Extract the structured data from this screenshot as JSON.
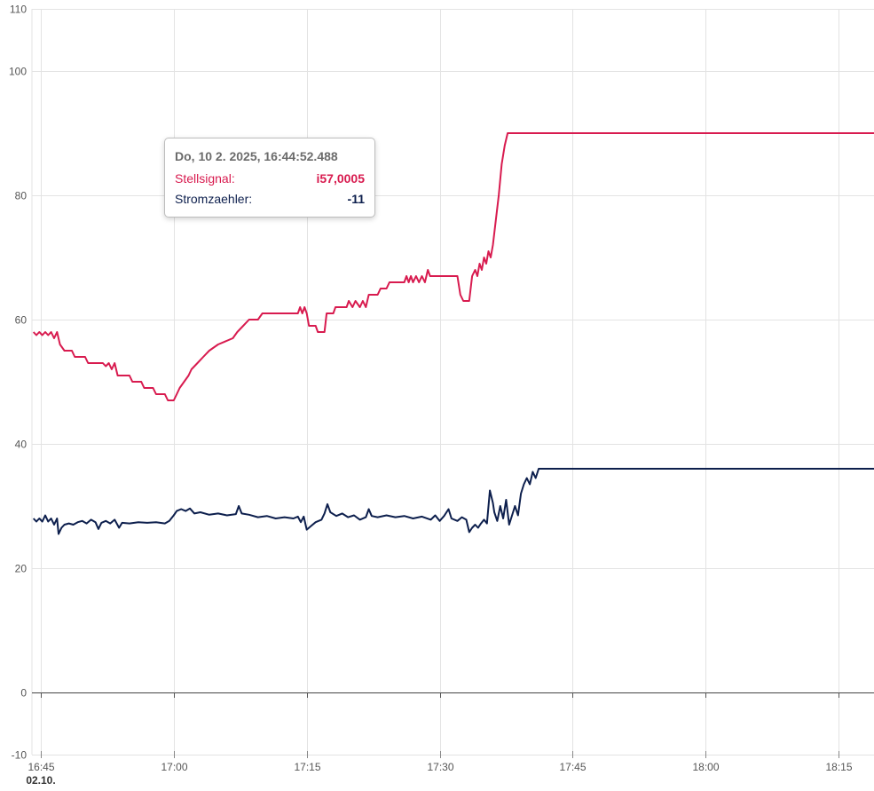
{
  "chart_data": {
    "type": "line",
    "title": "",
    "xlabel": "",
    "ylabel": "",
    "ylim": [
      -10,
      110
    ],
    "y_ticks": [
      -10,
      0,
      20,
      40,
      60,
      80,
      100,
      110
    ],
    "x_range": [
      "16:44",
      "18:19"
    ],
    "x_ticks": [
      "16:45",
      "17:00",
      "17:15",
      "17:30",
      "17:45",
      "18:00",
      "18:15"
    ],
    "x_date_label": "02.10.",
    "grid": true,
    "series": [
      {
        "name": "Stellsignal",
        "color": "#d81b4f",
        "points": [
          [
            "16:44:10",
            58
          ],
          [
            "16:44:30",
            57.5
          ],
          [
            "16:44:50",
            58
          ],
          [
            "16:45:10",
            57.5
          ],
          [
            "16:45:30",
            58
          ],
          [
            "16:45:50",
            57.5
          ],
          [
            "16:46:10",
            58
          ],
          [
            "16:46:30",
            57
          ],
          [
            "16:46:50",
            58
          ],
          [
            "16:47:10",
            56
          ],
          [
            "16:47:40",
            55
          ],
          [
            "16:48:30",
            55
          ],
          [
            "16:48:50",
            54
          ],
          [
            "16:50:00",
            54
          ],
          [
            "16:50:20",
            53
          ],
          [
            "16:52:00",
            53
          ],
          [
            "16:52:20",
            52.5
          ],
          [
            "16:52:40",
            53
          ],
          [
            "16:53:00",
            52
          ],
          [
            "16:53:20",
            53
          ],
          [
            "16:53:40",
            51
          ],
          [
            "16:55:00",
            51
          ],
          [
            "16:55:20",
            50
          ],
          [
            "16:56:20",
            50
          ],
          [
            "16:56:40",
            49
          ],
          [
            "16:57:40",
            49
          ],
          [
            "16:58:00",
            48
          ],
          [
            "16:59:00",
            48
          ],
          [
            "16:59:20",
            47
          ],
          [
            "17:00:00",
            47
          ],
          [
            "17:00:20",
            48
          ],
          [
            "17:00:40",
            49
          ],
          [
            "17:01:10",
            50
          ],
          [
            "17:01:40",
            51
          ],
          [
            "17:02:00",
            52
          ],
          [
            "17:02:40",
            53
          ],
          [
            "17:03:20",
            54
          ],
          [
            "17:04:00",
            55
          ],
          [
            "17:05:00",
            56
          ],
          [
            "17:06:40",
            57
          ],
          [
            "17:07:10",
            58
          ],
          [
            "17:07:50",
            59
          ],
          [
            "17:08:30",
            60
          ],
          [
            "17:09:30",
            60
          ],
          [
            "17:10:00",
            61
          ],
          [
            "17:14:00",
            61
          ],
          [
            "17:14:15",
            62
          ],
          [
            "17:14:30",
            61
          ],
          [
            "17:14:45",
            62
          ],
          [
            "17:15:00",
            61
          ],
          [
            "17:15:15",
            59
          ],
          [
            "17:16:00",
            59
          ],
          [
            "17:16:15",
            58
          ],
          [
            "17:17:00",
            58
          ],
          [
            "17:17:15",
            61
          ],
          [
            "17:18:00",
            61
          ],
          [
            "17:18:15",
            62
          ],
          [
            "17:19:30",
            62
          ],
          [
            "17:19:45",
            63
          ],
          [
            "17:20:10",
            62
          ],
          [
            "17:20:30",
            63
          ],
          [
            "17:21:00",
            62
          ],
          [
            "17:21:20",
            63
          ],
          [
            "17:21:40",
            62
          ],
          [
            "17:22:00",
            64
          ],
          [
            "17:23:00",
            64
          ],
          [
            "17:23:20",
            65
          ],
          [
            "17:24:00",
            65
          ],
          [
            "17:24:20",
            66
          ],
          [
            "17:26:00",
            66
          ],
          [
            "17:26:15",
            67
          ],
          [
            "17:26:30",
            66
          ],
          [
            "17:26:45",
            67
          ],
          [
            "17:27:00",
            66
          ],
          [
            "17:27:20",
            67
          ],
          [
            "17:27:40",
            66
          ],
          [
            "17:28:00",
            67
          ],
          [
            "17:28:20",
            66
          ],
          [
            "17:28:40",
            68
          ],
          [
            "17:28:55",
            67
          ],
          [
            "17:32:00",
            67
          ],
          [
            "17:32:20",
            64
          ],
          [
            "17:32:40",
            63
          ],
          [
            "17:33:20",
            63
          ],
          [
            "17:33:40",
            67
          ],
          [
            "17:34:00",
            68
          ],
          [
            "17:34:15",
            67
          ],
          [
            "17:34:30",
            69
          ],
          [
            "17:34:45",
            68
          ],
          [
            "17:35:00",
            70
          ],
          [
            "17:35:15",
            69
          ],
          [
            "17:35:30",
            71
          ],
          [
            "17:35:45",
            70
          ],
          [
            "17:36:00",
            72
          ],
          [
            "17:36:20",
            76
          ],
          [
            "17:36:40",
            80
          ],
          [
            "17:37:00",
            85
          ],
          [
            "17:37:20",
            88
          ],
          [
            "17:37:40",
            90
          ],
          [
            "18:19:00",
            90
          ]
        ]
      },
      {
        "name": "Stromzaehler",
        "color": "#0d1f4d",
        "points": [
          [
            "16:44:10",
            28
          ],
          [
            "16:44:30",
            27.5
          ],
          [
            "16:44:50",
            28
          ],
          [
            "16:45:10",
            27.5
          ],
          [
            "16:45:30",
            28.5
          ],
          [
            "16:45:50",
            27.5
          ],
          [
            "16:46:10",
            28
          ],
          [
            "16:46:30",
            27
          ],
          [
            "16:46:50",
            28
          ],
          [
            "16:47:00",
            25.5
          ],
          [
            "16:47:20",
            26.5
          ],
          [
            "16:47:40",
            27
          ],
          [
            "16:48:10",
            27.2
          ],
          [
            "16:48:40",
            27
          ],
          [
            "16:49:10",
            27.4
          ],
          [
            "16:49:40",
            27.6
          ],
          [
            "16:50:10",
            27.2
          ],
          [
            "16:50:40",
            27.8
          ],
          [
            "16:51:10",
            27.4
          ],
          [
            "16:51:30",
            26.3
          ],
          [
            "16:51:50",
            27.3
          ],
          [
            "16:52:20",
            27.6
          ],
          [
            "16:52:50",
            27.2
          ],
          [
            "16:53:20",
            27.8
          ],
          [
            "16:53:50",
            26.5
          ],
          [
            "16:54:10",
            27.3
          ],
          [
            "16:55:00",
            27.2
          ],
          [
            "16:56:00",
            27.4
          ],
          [
            "16:57:00",
            27.3
          ],
          [
            "16:58:00",
            27.4
          ],
          [
            "16:59:00",
            27.2
          ],
          [
            "16:59:30",
            27.6
          ],
          [
            "17:00:00",
            28.5
          ],
          [
            "17:00:20",
            29.2
          ],
          [
            "17:00:50",
            29.5
          ],
          [
            "17:01:20",
            29.2
          ],
          [
            "17:01:50",
            29.6
          ],
          [
            "17:02:20",
            28.8
          ],
          [
            "17:03:00",
            29
          ],
          [
            "17:04:00",
            28.6
          ],
          [
            "17:05:00",
            28.8
          ],
          [
            "17:06:00",
            28.5
          ],
          [
            "17:07:00",
            28.7
          ],
          [
            "17:07:20",
            30
          ],
          [
            "17:07:40",
            28.8
          ],
          [
            "17:08:30",
            28.6
          ],
          [
            "17:09:30",
            28.2
          ],
          [
            "17:10:30",
            28.4
          ],
          [
            "17:11:30",
            28
          ],
          [
            "17:12:30",
            28.2
          ],
          [
            "17:13:30",
            28
          ],
          [
            "17:14:00",
            28.3
          ],
          [
            "17:14:20",
            27.4
          ],
          [
            "17:14:40",
            28.3
          ],
          [
            "17:15:00",
            26.2
          ],
          [
            "17:15:30",
            26.8
          ],
          [
            "17:16:00",
            27.4
          ],
          [
            "17:16:40",
            27.8
          ],
          [
            "17:17:00",
            28.8
          ],
          [
            "17:17:20",
            30.3
          ],
          [
            "17:17:40",
            29
          ],
          [
            "17:18:20",
            28.4
          ],
          [
            "17:19:00",
            28.8
          ],
          [
            "17:19:40",
            28.2
          ],
          [
            "17:20:20",
            28.5
          ],
          [
            "17:21:00",
            27.8
          ],
          [
            "17:21:40",
            28.2
          ],
          [
            "17:22:00",
            29.5
          ],
          [
            "17:22:20",
            28.4
          ],
          [
            "17:23:00",
            28.2
          ],
          [
            "17:24:00",
            28.5
          ],
          [
            "17:25:00",
            28.2
          ],
          [
            "17:26:00",
            28.4
          ],
          [
            "17:27:00",
            28
          ],
          [
            "17:28:00",
            28.3
          ],
          [
            "17:29:00",
            27.8
          ],
          [
            "17:29:30",
            28.5
          ],
          [
            "17:30:00",
            27.6
          ],
          [
            "17:30:30",
            28.4
          ],
          [
            "17:31:00",
            29.5
          ],
          [
            "17:31:20",
            28
          ],
          [
            "17:32:00",
            27.6
          ],
          [
            "17:32:30",
            28.2
          ],
          [
            "17:33:00",
            27.8
          ],
          [
            "17:33:20",
            25.8
          ],
          [
            "17:33:40",
            26.5
          ],
          [
            "17:34:00",
            27
          ],
          [
            "17:34:20",
            26.5
          ],
          [
            "17:34:40",
            27.2
          ],
          [
            "17:35:00",
            27.8
          ],
          [
            "17:35:20",
            27.2
          ],
          [
            "17:35:40",
            32.5
          ],
          [
            "17:36:00",
            30.5
          ],
          [
            "17:36:10",
            29
          ],
          [
            "17:36:30",
            27.6
          ],
          [
            "17:36:50",
            30
          ],
          [
            "17:37:10",
            28
          ],
          [
            "17:37:30",
            31
          ],
          [
            "17:37:50",
            27
          ],
          [
            "17:38:10",
            28.5
          ],
          [
            "17:38:30",
            30
          ],
          [
            "17:38:50",
            28.5
          ],
          [
            "17:39:10",
            32
          ],
          [
            "17:39:30",
            33.5
          ],
          [
            "17:39:50",
            34.5
          ],
          [
            "17:40:10",
            33.5
          ],
          [
            "17:40:30",
            35.5
          ],
          [
            "17:40:50",
            34.5
          ],
          [
            "17:41:10",
            36
          ],
          [
            "18:19:00",
            36
          ]
        ]
      }
    ]
  },
  "tooltip": {
    "title": "Do, 10 2. 2025, 16:44:52.488",
    "rows": [
      {
        "label": "Stellsignal:",
        "value": "i57,0005",
        "color": "#d81b4f"
      },
      {
        "label": "Stromzaehler:",
        "value": "-11",
        "color": "#0d1f4d"
      }
    ]
  }
}
